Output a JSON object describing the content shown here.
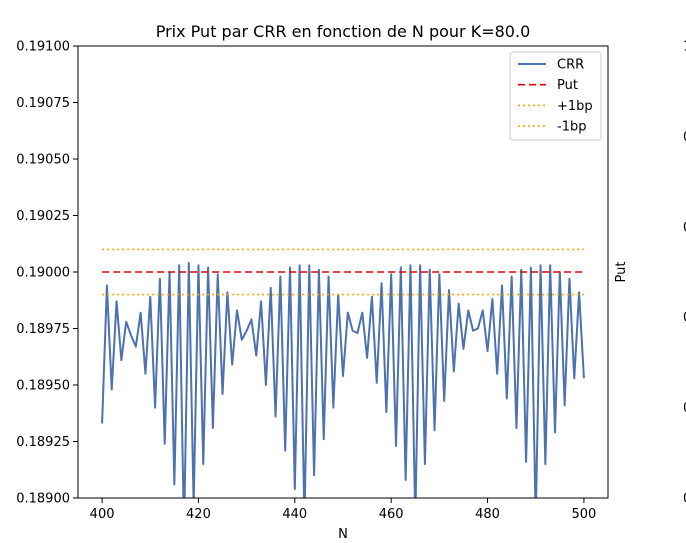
{
  "chart_data": {
    "type": "line",
    "title": "Prix Put par CRR en fonction de N pour K=80.0",
    "xlabel": "N",
    "ylabel": "",
    "right_ylabel": "Put",
    "xlim": [
      395,
      505
    ],
    "ylim": [
      0.189,
      0.191
    ],
    "xticks": [
      400,
      420,
      440,
      460,
      480,
      500
    ],
    "yticks": [
      0.189,
      0.18925,
      0.1895,
      0.18975,
      0.19,
      0.19025,
      0.1905,
      0.19075,
      0.191
    ],
    "ytick_labels": [
      "0.18900",
      "0.18925",
      "0.18950",
      "0.18975",
      "0.19000",
      "0.19025",
      "0.19050",
      "0.19075",
      "0.19100"
    ],
    "right_axis_tick_labels": [
      "1",
      "0",
      "0",
      "0",
      "0",
      "0"
    ],
    "grid": false,
    "legend_position": "top-right",
    "series": [
      {
        "name": "CRR",
        "style": "solid",
        "color": "#4c72b0",
        "x": [
          400,
          401,
          402,
          403,
          404,
          405,
          406,
          407,
          408,
          409,
          410,
          411,
          412,
          413,
          414,
          415,
          416,
          417,
          418,
          419,
          420,
          421,
          422,
          423,
          424,
          425,
          426,
          427,
          428,
          429,
          430,
          431,
          432,
          433,
          434,
          435,
          436,
          437,
          438,
          439,
          440,
          441,
          442,
          443,
          444,
          445,
          446,
          447,
          448,
          449,
          450,
          451,
          452,
          453,
          454,
          455,
          456,
          457,
          458,
          459,
          460,
          461,
          462,
          463,
          464,
          465,
          466,
          467,
          468,
          469,
          470,
          471,
          472,
          473,
          474,
          475,
          476,
          477,
          478,
          479,
          480,
          481,
          482,
          483,
          484,
          485,
          486,
          487,
          488,
          489,
          490,
          491,
          492,
          493,
          494,
          495,
          496,
          497,
          498,
          499,
          500
        ],
        "y": [
          0.18933,
          0.18994,
          0.18948,
          0.18987,
          0.18961,
          0.18978,
          0.18972,
          0.18967,
          0.18982,
          0.18955,
          0.18989,
          0.1894,
          0.18997,
          0.18924,
          0.19,
          0.18906,
          0.19003,
          0.18885,
          0.19004,
          0.18897,
          0.19003,
          0.18915,
          0.19002,
          0.18931,
          0.18999,
          0.18946,
          0.18991,
          0.18959,
          0.18983,
          0.1897,
          0.18974,
          0.18979,
          0.18963,
          0.18987,
          0.1895,
          0.18993,
          0.18936,
          0.18998,
          0.18921,
          0.19002,
          0.18904,
          0.19003,
          0.1889,
          0.19003,
          0.1891,
          0.19001,
          0.18926,
          0.18998,
          0.1894,
          0.1899,
          0.18954,
          0.18982,
          0.18974,
          0.18973,
          0.18982,
          0.18962,
          0.18989,
          0.18951,
          0.18995,
          0.18938,
          0.18999,
          0.18923,
          0.19002,
          0.18908,
          0.19003,
          0.1889,
          0.19003,
          0.18915,
          0.19001,
          0.1893,
          0.18999,
          0.18943,
          0.18992,
          0.18956,
          0.18986,
          0.18966,
          0.18983,
          0.18974,
          0.18975,
          0.18983,
          0.18965,
          0.18988,
          0.18955,
          0.18994,
          0.18944,
          0.18998,
          0.18931,
          0.19001,
          0.18916,
          0.19002,
          0.1889,
          0.19003,
          0.18915,
          0.19003,
          0.18929,
          0.19,
          0.18941,
          0.18997,
          0.18953,
          0.18991,
          0.18953
        ],
        "y_note": "y values are estimated from pixel reading; pixel extremes clipped at axis bottom (0.18900)"
      },
      {
        "name": "Put",
        "style": "dashed",
        "color": "#e60000",
        "x": [
          400,
          500
        ],
        "y": [
          0.19,
          0.19
        ]
      },
      {
        "name": "+1bp",
        "style": "dotted",
        "color": "#ffa500",
        "x": [
          400,
          500
        ],
        "y": [
          0.1901,
          0.1901
        ]
      },
      {
        "name": "-1bp",
        "style": "dotted",
        "color": "#ffa500",
        "x": [
          400,
          500
        ],
        "y": [
          0.1899,
          0.1899
        ]
      }
    ]
  }
}
